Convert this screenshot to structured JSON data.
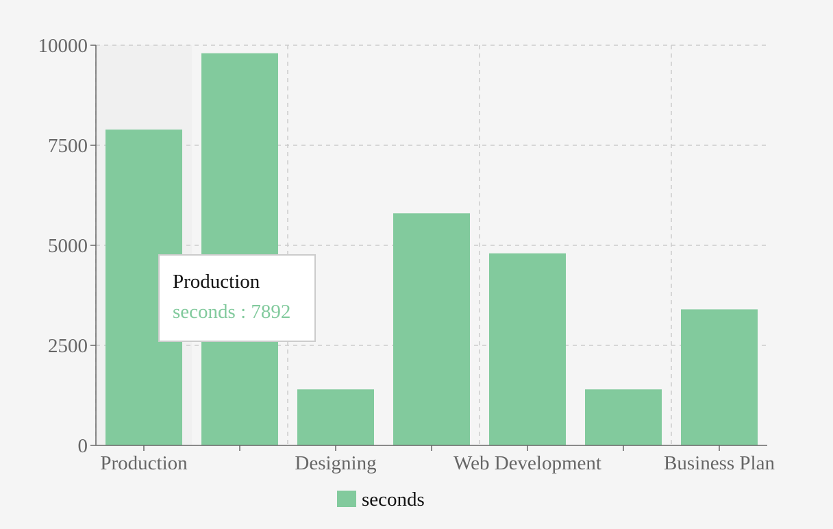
{
  "chart_data": {
    "type": "bar",
    "categories": [
      "Production",
      "",
      "Designing",
      "",
      "Web Development",
      "",
      "Business Plan"
    ],
    "series": [
      {
        "name": "seconds",
        "values": [
          7892,
          9800,
          1400,
          5800,
          4800,
          1400,
          3400
        ],
        "color": "#82ca9d"
      }
    ],
    "ylim": [
      0,
      10000
    ],
    "yticks": [
      0,
      2500,
      5000,
      7500,
      10000
    ],
    "grid": true,
    "legend": "bottom",
    "colors": {
      "axis": "#666666",
      "grid": "#cccccc",
      "hover_band": "#eeeeee"
    },
    "active_index": 0
  },
  "tooltip": {
    "title": "Production",
    "series_name": "seconds",
    "separator": " : ",
    "value": "7892"
  }
}
